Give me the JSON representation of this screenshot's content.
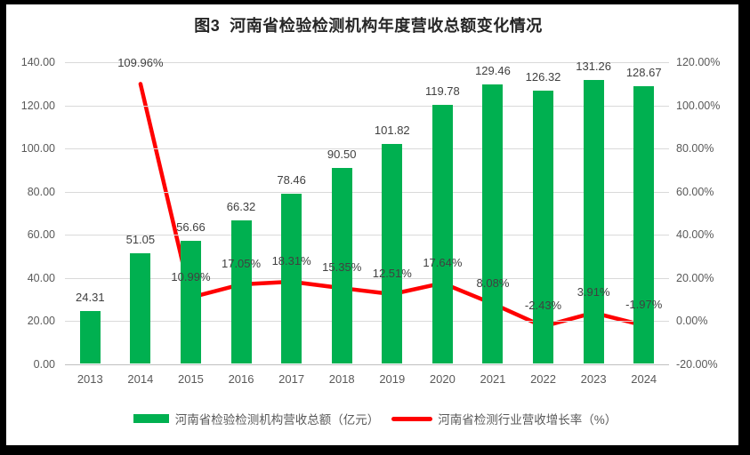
{
  "chart_data": {
    "type": "combo-bar-line",
    "title": "图3  河南省检验检测机构年度营收总额变化情况",
    "categories": [
      "2013",
      "2014",
      "2015",
      "2016",
      "2017",
      "2018",
      "2019",
      "2020",
      "2021",
      "2022",
      "2023",
      "2024"
    ],
    "series": [
      {
        "name": "河南省检验检测机构营收总额（亿元）",
        "type": "bar",
        "axis": "left",
        "color": "#00B050",
        "values": [
          24.31,
          51.05,
          56.66,
          66.32,
          78.46,
          90.5,
          101.82,
          119.78,
          129.46,
          126.32,
          131.26,
          128.67
        ],
        "labels": [
          "24.31",
          "51.05",
          "56.66",
          "66.32",
          "78.46",
          "90.50",
          "101.82",
          "119.78",
          "129.46",
          "126.32",
          "131.26",
          "128.67"
        ]
      },
      {
        "name": "河南省检测行业营收增长率（%）",
        "type": "line",
        "axis": "right",
        "color": "#FF0000",
        "values": [
          null,
          109.96,
          10.99,
          17.05,
          18.31,
          15.35,
          12.51,
          17.64,
          8.08,
          -2.43,
          3.91,
          -1.97
        ],
        "labels": [
          "",
          "109.96%",
          "10.99%",
          "17.05%",
          "18.31%",
          "15.35%",
          "12.51%",
          "17.64%",
          "8.08%",
          "-2.43%",
          "3.91%",
          "-1.97%"
        ]
      }
    ],
    "left_axis": {
      "min": 0,
      "max": 140,
      "step": 20,
      "ticks": [
        "140.00",
        "120.00",
        "100.00",
        "80.00",
        "60.00",
        "40.00",
        "20.00",
        "0.00"
      ]
    },
    "right_axis": {
      "min": -20,
      "max": 120,
      "step": 20,
      "ticks": [
        "120.00%",
        "100.00%",
        "80.00%",
        "60.00%",
        "40.00%",
        "20.00%",
        "0.00%",
        "-20.00%"
      ]
    },
    "grid": true,
    "legend_position": "bottom",
    "colors": {
      "grid": "#D9D9D9",
      "axis_line": "#BFBFBF",
      "tick_text": "#595959",
      "label_text": "#404040",
      "title_text": "#262626",
      "plot_background": "#FFFFFF",
      "frame": "#000000"
    }
  }
}
